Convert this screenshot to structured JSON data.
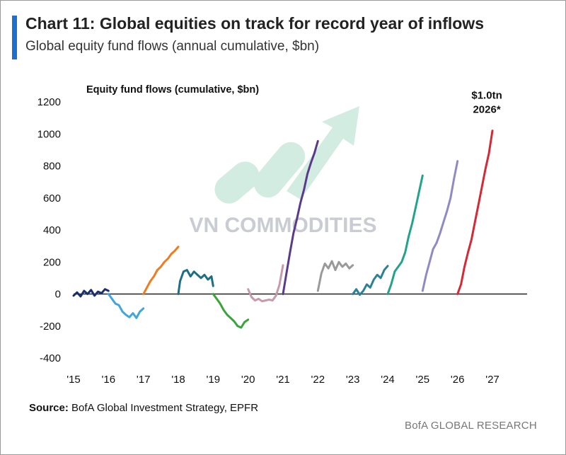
{
  "header": {
    "title": "Chart 11: Global equities on track for record year of inflows",
    "subtitle": "Global equity fund flows (annual cumulative, $bn)"
  },
  "colors": {
    "accent": "#1f6fd1",
    "axis": "#222222"
  },
  "watermark": {
    "text": "VN COMMODITIES",
    "icon": "trend-arrow-logo"
  },
  "chart_data": {
    "type": "line",
    "title": "Equity fund flows (cumulative, $bn)",
    "xlabel": "",
    "ylabel": "Equity fund flows (cumulative, $bn)",
    "xlim": [
      2015,
      2027
    ],
    "ylim": [
      -400,
      1200
    ],
    "y_ticks": [
      1200,
      1000,
      800,
      600,
      400,
      200,
      0,
      -200,
      -400
    ],
    "x_ticks": [
      {
        "value": 2015,
        "label": "'15"
      },
      {
        "value": 2016,
        "label": "'16"
      },
      {
        "value": 2017,
        "label": "'17"
      },
      {
        "value": 2018,
        "label": "'18"
      },
      {
        "value": 2019,
        "label": "'19"
      },
      {
        "value": 2020,
        "label": "'20"
      },
      {
        "value": 2021,
        "label": "'21"
      },
      {
        "value": 2022,
        "label": "'22"
      },
      {
        "value": 2023,
        "label": "'23"
      },
      {
        "value": 2024,
        "label": "'24"
      },
      {
        "value": 2025,
        "label": "'25"
      },
      {
        "value": 2026,
        "label": "'26"
      },
      {
        "value": 2027,
        "label": "'27"
      }
    ],
    "annotation": {
      "line1": "$1.0tn",
      "line2": "2026*",
      "x": 2026.9,
      "y": 1070
    },
    "series": [
      {
        "name": "2015",
        "color": "#1b2f6e",
        "points": [
          [
            2015.0,
            -10
          ],
          [
            2015.1,
            10
          ],
          [
            2015.2,
            -15
          ],
          [
            2015.3,
            20
          ],
          [
            2015.4,
            0
          ],
          [
            2015.5,
            25
          ],
          [
            2015.6,
            -10
          ],
          [
            2015.7,
            15
          ],
          [
            2015.8,
            5
          ],
          [
            2015.9,
            30
          ],
          [
            2016.0,
            20
          ]
        ]
      },
      {
        "name": "2016",
        "color": "#41a6dc",
        "points": [
          [
            2016.0,
            0
          ],
          [
            2016.1,
            -30
          ],
          [
            2016.2,
            -60
          ],
          [
            2016.3,
            -70
          ],
          [
            2016.4,
            -110
          ],
          [
            2016.5,
            -130
          ],
          [
            2016.6,
            -145
          ],
          [
            2016.7,
            -120
          ],
          [
            2016.8,
            -150
          ],
          [
            2016.9,
            -110
          ],
          [
            2017.0,
            -90
          ]
        ]
      },
      {
        "name": "2017",
        "color": "#ee7d22",
        "points": [
          [
            2017.0,
            0
          ],
          [
            2017.1,
            40
          ],
          [
            2017.2,
            80
          ],
          [
            2017.3,
            110
          ],
          [
            2017.4,
            150
          ],
          [
            2017.5,
            170
          ],
          [
            2017.6,
            200
          ],
          [
            2017.7,
            220
          ],
          [
            2017.8,
            250
          ],
          [
            2017.9,
            270
          ],
          [
            2018.0,
            295
          ]
        ]
      },
      {
        "name": "2018",
        "color": "#1e6e84",
        "points": [
          [
            2018.0,
            0
          ],
          [
            2018.05,
            80
          ],
          [
            2018.15,
            140
          ],
          [
            2018.25,
            150
          ],
          [
            2018.35,
            110
          ],
          [
            2018.45,
            140
          ],
          [
            2018.55,
            120
          ],
          [
            2018.65,
            100
          ],
          [
            2018.75,
            120
          ],
          [
            2018.85,
            90
          ],
          [
            2018.95,
            110
          ],
          [
            2019.0,
            50
          ]
        ]
      },
      {
        "name": "2019",
        "color": "#3aa43a",
        "points": [
          [
            2019.0,
            0
          ],
          [
            2019.1,
            -30
          ],
          [
            2019.2,
            -60
          ],
          [
            2019.3,
            -100
          ],
          [
            2019.4,
            -130
          ],
          [
            2019.5,
            -150
          ],
          [
            2019.6,
            -170
          ],
          [
            2019.7,
            -200
          ],
          [
            2019.8,
            -210
          ],
          [
            2019.9,
            -175
          ],
          [
            2020.0,
            -160
          ]
        ]
      },
      {
        "name": "2020",
        "color": "#c69aa8",
        "points": [
          [
            2020.0,
            30
          ],
          [
            2020.1,
            -20
          ],
          [
            2020.2,
            -40
          ],
          [
            2020.3,
            -30
          ],
          [
            2020.4,
            -45
          ],
          [
            2020.5,
            -40
          ],
          [
            2020.6,
            -35
          ],
          [
            2020.7,
            -40
          ],
          [
            2020.8,
            -10
          ],
          [
            2020.9,
            60
          ],
          [
            2021.0,
            180
          ]
        ]
      },
      {
        "name": "2021",
        "color": "#5b3a8a",
        "points": [
          [
            2021.0,
            0
          ],
          [
            2021.1,
            130
          ],
          [
            2021.2,
            260
          ],
          [
            2021.3,
            380
          ],
          [
            2021.4,
            470
          ],
          [
            2021.5,
            570
          ],
          [
            2021.6,
            650
          ],
          [
            2021.7,
            750
          ],
          [
            2021.8,
            820
          ],
          [
            2021.9,
            880
          ],
          [
            2022.0,
            955
          ]
        ]
      },
      {
        "name": "2022",
        "color": "#9a9a9a",
        "points": [
          [
            2022.0,
            20
          ],
          [
            2022.1,
            130
          ],
          [
            2022.2,
            190
          ],
          [
            2022.3,
            160
          ],
          [
            2022.4,
            205
          ],
          [
            2022.5,
            150
          ],
          [
            2022.6,
            200
          ],
          [
            2022.7,
            170
          ],
          [
            2022.8,
            190
          ],
          [
            2022.9,
            160
          ],
          [
            2023.0,
            180
          ]
        ]
      },
      {
        "name": "2023",
        "color": "#2c8197",
        "points": [
          [
            2023.0,
            0
          ],
          [
            2023.1,
            30
          ],
          [
            2023.2,
            -5
          ],
          [
            2023.3,
            20
          ],
          [
            2023.4,
            60
          ],
          [
            2023.5,
            40
          ],
          [
            2023.6,
            90
          ],
          [
            2023.7,
            120
          ],
          [
            2023.8,
            100
          ],
          [
            2023.9,
            150
          ],
          [
            2024.0,
            175
          ]
        ]
      },
      {
        "name": "2024",
        "color": "#23a38a",
        "points": [
          [
            2024.0,
            0
          ],
          [
            2024.1,
            60
          ],
          [
            2024.2,
            140
          ],
          [
            2024.3,
            170
          ],
          [
            2024.4,
            200
          ],
          [
            2024.5,
            260
          ],
          [
            2024.6,
            360
          ],
          [
            2024.7,
            440
          ],
          [
            2024.8,
            540
          ],
          [
            2024.9,
            640
          ],
          [
            2025.0,
            740
          ]
        ]
      },
      {
        "name": "2025",
        "color": "#8e8bc4",
        "points": [
          [
            2025.0,
            20
          ],
          [
            2025.1,
            120
          ],
          [
            2025.2,
            200
          ],
          [
            2025.3,
            280
          ],
          [
            2025.4,
            320
          ],
          [
            2025.5,
            380
          ],
          [
            2025.6,
            450
          ],
          [
            2025.7,
            520
          ],
          [
            2025.8,
            600
          ],
          [
            2025.9,
            720
          ],
          [
            2026.0,
            830
          ]
        ]
      },
      {
        "name": "2026",
        "color": "#d42a36",
        "points": [
          [
            2026.0,
            0
          ],
          [
            2026.1,
            60
          ],
          [
            2026.2,
            170
          ],
          [
            2026.3,
            260
          ],
          [
            2026.4,
            340
          ],
          [
            2026.5,
            450
          ],
          [
            2026.6,
            560
          ],
          [
            2026.7,
            670
          ],
          [
            2026.8,
            780
          ],
          [
            2026.9,
            880
          ],
          [
            2027.0,
            1020
          ]
        ]
      }
    ]
  },
  "footer": {
    "source_label": "Source:",
    "source_text": " BofA Global Investment Strategy, EPFR",
    "brand": "BofA GLOBAL RESEARCH"
  }
}
